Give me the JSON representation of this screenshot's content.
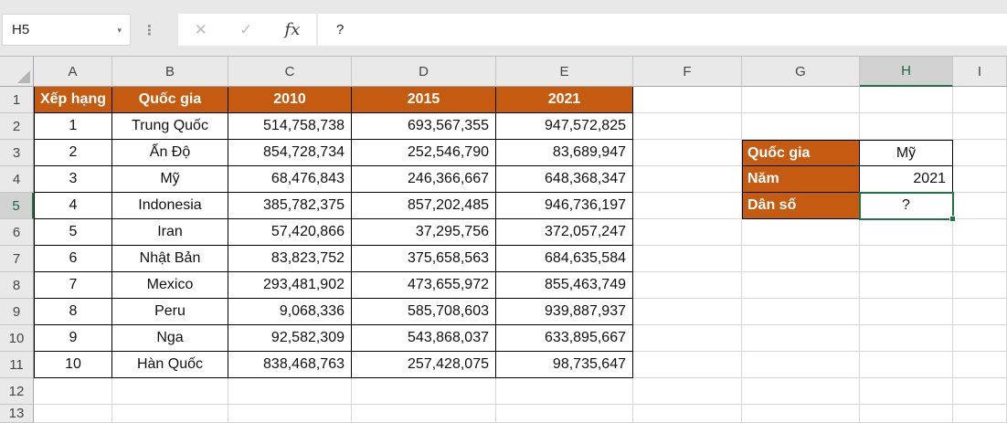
{
  "toolbar": {
    "name_box": "H5",
    "name_box_dropdown_icon": "▾",
    "separator_dots_icon": "⋮",
    "cancel_icon": "✕",
    "enter_icon": "✓",
    "function_icon": "fx",
    "formula": "?"
  },
  "sheet": {
    "column_headers": [
      "A",
      "B",
      "C",
      "D",
      "E",
      "F",
      "G",
      "H",
      "I"
    ],
    "row_numbers": [
      "1",
      "2",
      "3",
      "4",
      "5",
      "6",
      "7",
      "8",
      "9",
      "10",
      "11",
      "12",
      "13"
    ],
    "selected_cell": "H5",
    "selected_column": "H",
    "selected_row": "5"
  },
  "population_table": {
    "headers": [
      "Xếp hạng",
      "Quốc gia",
      "2010",
      "2015",
      "2021"
    ],
    "rows": [
      {
        "rank": "1",
        "country": "Trung Quốc",
        "y2010": "514,758,738",
        "y2015": "693,567,355",
        "y2021": "947,572,825"
      },
      {
        "rank": "2",
        "country": "Ấn Độ",
        "y2010": "854,728,734",
        "y2015": "252,546,790",
        "y2021": "83,689,947"
      },
      {
        "rank": "3",
        "country": "Mỹ",
        "y2010": "68,476,843",
        "y2015": "246,366,667",
        "y2021": "648,368,347"
      },
      {
        "rank": "4",
        "country": "Indonesia",
        "y2010": "385,782,375",
        "y2015": "857,202,485",
        "y2021": "946,736,197"
      },
      {
        "rank": "5",
        "country": "Iran",
        "y2010": "57,420,866",
        "y2015": "37,295,756",
        "y2021": "372,057,247"
      },
      {
        "rank": "6",
        "country": "Nhật Bản",
        "y2010": "83,823,752",
        "y2015": "375,658,563",
        "y2021": "684,635,584"
      },
      {
        "rank": "7",
        "country": "Mexico",
        "y2010": "293,481,902",
        "y2015": "473,655,972",
        "y2021": "855,463,749"
      },
      {
        "rank": "8",
        "country": "Peru",
        "y2010": "9,068,336",
        "y2015": "585,708,603",
        "y2021": "939,887,937"
      },
      {
        "rank": "9",
        "country": "Nga",
        "y2010": "92,582,309",
        "y2015": "543,868,037",
        "y2021": "633,895,667"
      },
      {
        "rank": "10",
        "country": "Hàn Quốc",
        "y2010": "838,468,763",
        "y2015": "257,428,075",
        "y2021": "98,735,647"
      }
    ]
  },
  "lookup_panel": {
    "rows": [
      {
        "label": "Quốc gia",
        "value": "Mỹ"
      },
      {
        "label": "Năm",
        "value": "2021"
      },
      {
        "label": "Dân số",
        "value": "?"
      }
    ]
  },
  "colors": {
    "accent_orange": "#C55A11",
    "selection_green": "#217346",
    "header_gray": "#E9E9E9",
    "selected_header_gray": "#D2D2D2"
  }
}
